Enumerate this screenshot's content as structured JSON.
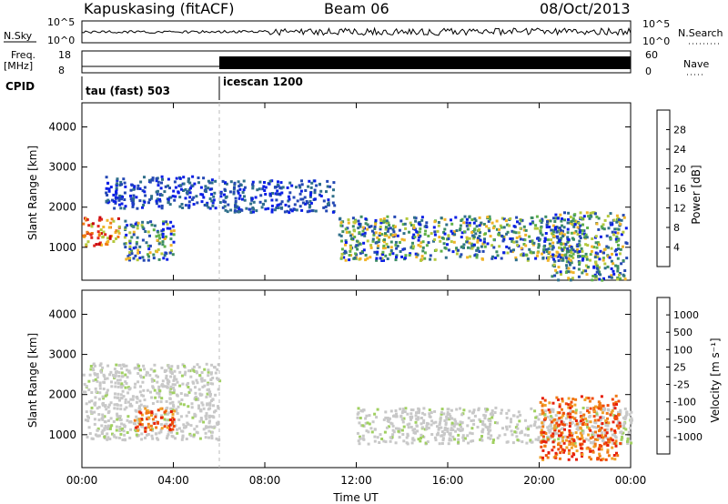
{
  "header": {
    "station": "Kapuskasing (fitACF)",
    "beam": "Beam 06",
    "date": "08/Oct/2013"
  },
  "strips": {
    "nsky": {
      "label": "N.Sky",
      "left_ticks": [
        "10^5",
        "10^0"
      ],
      "right_label": "N.Search",
      "right_ticks": [
        "10^5",
        "10^0"
      ]
    },
    "freq": {
      "label_line1": "Freq.",
      "label_line2": "[MHz]",
      "left_ticks": [
        "18",
        "8"
      ],
      "right_label": "Nave",
      "right_ticks": [
        "60",
        "0"
      ]
    },
    "cpid": {
      "label": "CPID",
      "segments": [
        {
          "label": "tau (fast) 503",
          "start_hour": 0
        },
        {
          "label": "icescan 1200",
          "start_hour": 6
        }
      ]
    }
  },
  "chart_data": [
    {
      "type": "heatmap",
      "title": "",
      "xlabel": "Time UT",
      "ylabel": "Slant Range [km]",
      "xlim": [
        0,
        24
      ],
      "ylim": [
        180,
        4600
      ],
      "x_ticks": [
        "00:00",
        "04:00",
        "08:00",
        "12:00",
        "16:00",
        "20:00",
        "00:00"
      ],
      "y_ticks": [
        1000,
        2000,
        3000,
        4000
      ],
      "colorbar": {
        "label": "Power [dB]",
        "ticks": [
          "4",
          "8",
          "12",
          "16",
          "20",
          "24",
          "28"
        ],
        "colors": [
          "#0a1ee6",
          "#2448b4",
          "#2f6f8a",
          "#3c8c64",
          "#5fb048",
          "#b4c83c",
          "#f0b428",
          "#f07a14",
          "#e0281e",
          "#c8000a"
        ]
      },
      "regions": [
        {
          "name": "early-band",
          "t0": 0.0,
          "t1": 1.6,
          "r0": 1050,
          "r1": 1800,
          "level": "high"
        },
        {
          "name": "rising-streak",
          "t0": 1.0,
          "t1": 5.8,
          "r0": 2000,
          "r1": 2800,
          "level": "low"
        },
        {
          "name": "cusp-echo",
          "t0": 1.8,
          "t1": 4.0,
          "r0": 700,
          "r1": 1700,
          "level": "medium"
        },
        {
          "name": "descending-streak",
          "t0": 6.0,
          "t1": 11.0,
          "r0": 1900,
          "r1": 2700,
          "level": "low"
        },
        {
          "name": "main-band",
          "t0": 11.2,
          "t1": 22.0,
          "r0": 700,
          "r1": 1800,
          "level": "medium"
        },
        {
          "name": "late-patch",
          "t0": 20.5,
          "t1": 23.8,
          "r0": 200,
          "r1": 1900,
          "level": "medium"
        }
      ]
    },
    {
      "type": "heatmap",
      "title": "",
      "xlabel": "Time UT",
      "ylabel": "Slant Range [km]",
      "xlim": [
        0,
        24
      ],
      "ylim": [
        180,
        4600
      ],
      "x_ticks": [
        "00:00",
        "04:00",
        "08:00",
        "12:00",
        "16:00",
        "20:00",
        "00:00"
      ],
      "y_ticks": [
        1000,
        2000,
        3000,
        4000
      ],
      "colorbar": {
        "label": "Velocity [m s⁻¹]",
        "ticks": [
          "1000",
          "500",
          "100",
          "25",
          "-25",
          "-100",
          "-500",
          "-1000"
        ],
        "colors": [
          "#1e3cb4",
          "#3c64a0",
          "#2e8c5a",
          "#50b432",
          "#a0d060",
          "#c8c8c8",
          "#c8c8c8",
          "#f0a028",
          "#f07814",
          "#f04b0a",
          "#e61e0a"
        ]
      },
      "regions": [
        {
          "name": "ground-scatter-early",
          "t0": 0.0,
          "t1": 6.0,
          "r0": 900,
          "r1": 2800,
          "level": "ground"
        },
        {
          "name": "cusp-negative",
          "t0": 2.2,
          "t1": 4.0,
          "r0": 1100,
          "r1": 1700,
          "level": "negative"
        },
        {
          "name": "ground-scatter-main",
          "t0": 12.0,
          "t1": 24.0,
          "r0": 800,
          "r1": 1700,
          "level": "ground"
        },
        {
          "name": "late-negative",
          "t0": 20.0,
          "t1": 23.5,
          "r0": 400,
          "r1": 2000,
          "level": "negative"
        }
      ]
    }
  ]
}
